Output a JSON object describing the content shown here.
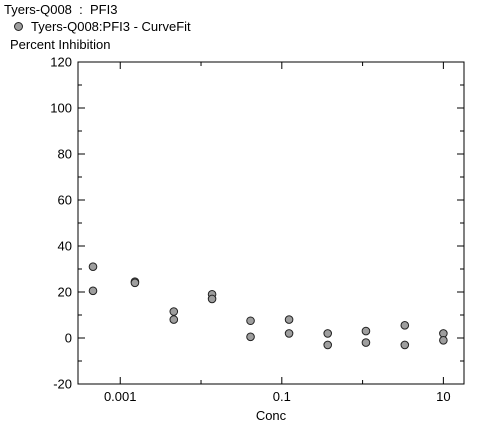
{
  "chart_data": {
    "type": "scatter",
    "title": "Tyers-Q008  :  PFI3",
    "legend": "Tyers-Q008:PFI3 - CurveFit",
    "ylabel": "Percent Inhibition",
    "xlabel": "Conc",
    "x_scale": "log",
    "xlim": [
      0.0003,
      18
    ],
    "ylim": [
      -20,
      120
    ],
    "y_ticks": [
      -20,
      0,
      20,
      40,
      60,
      80,
      100,
      120
    ],
    "x_ticks": [
      {
        "value": 0.001,
        "label": "0.001"
      },
      {
        "value": 0.1,
        "label": "0.1"
      },
      {
        "value": 10,
        "label": "10"
      }
    ],
    "series": [
      {
        "name": "Tyers-Q008:PFI3 - CurveFit",
        "color": "#9e9e9e",
        "points": [
          {
            "x": 0.00046,
            "y": 31
          },
          {
            "x": 0.00046,
            "y": 20.5
          },
          {
            "x": 0.00152,
            "y": 24.5
          },
          {
            "x": 0.00152,
            "y": 24
          },
          {
            "x": 0.0046,
            "y": 11.5
          },
          {
            "x": 0.0046,
            "y": 8
          },
          {
            "x": 0.0137,
            "y": 19
          },
          {
            "x": 0.0137,
            "y": 17
          },
          {
            "x": 0.041,
            "y": 7.5
          },
          {
            "x": 0.041,
            "y": 0.5
          },
          {
            "x": 0.123,
            "y": 8
          },
          {
            "x": 0.123,
            "y": 2
          },
          {
            "x": 0.37,
            "y": 2
          },
          {
            "x": 0.37,
            "y": -3
          },
          {
            "x": 1.1,
            "y": 3
          },
          {
            "x": 1.1,
            "y": -2
          },
          {
            "x": 3.33,
            "y": 5.5
          },
          {
            "x": 3.33,
            "y": -3
          },
          {
            "x": 10,
            "y": 2
          },
          {
            "x": 10,
            "y": -1
          }
        ]
      }
    ]
  }
}
